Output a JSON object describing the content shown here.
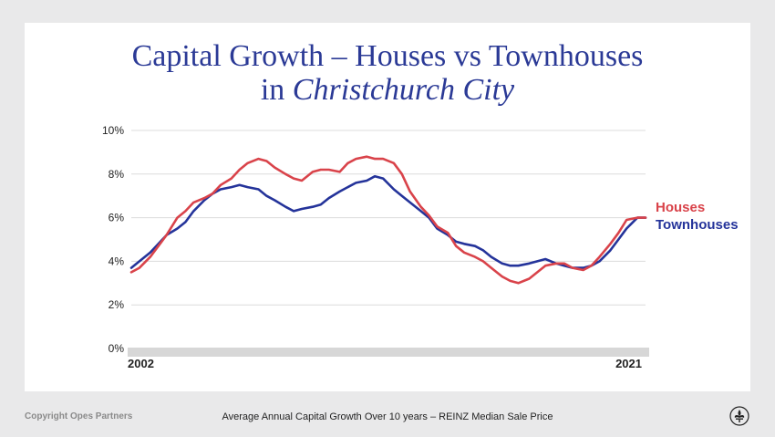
{
  "title": {
    "line1": "Capital Growth – Houses vs Townhouses",
    "line2_prefix": "in ",
    "line2_italic": "Christchurch City"
  },
  "footer": {
    "copyright": "Copyright Opes Partners",
    "caption": "Average Annual Capital Growth Over 10 years – REINZ Median Sale Price",
    "logo_icon": "fleur-de-lis-icon"
  },
  "colors": {
    "houses": "#d9434a",
    "townhouses": "#24339a",
    "title": "#2b3a96",
    "grid": "#dcdcdc",
    "axis_band": "#d7d7d7"
  },
  "chart_data": {
    "type": "line",
    "title": "Capital Growth – Houses vs Townhouses in Christchurch City",
    "xlabel": "",
    "ylabel": "",
    "xlim": [
      2002,
      2021
    ],
    "ylim": [
      0,
      10
    ],
    "y_ticks": [
      "0%",
      "2%",
      "4%",
      "6%",
      "8%",
      "10%"
    ],
    "x_tick_labels": [
      {
        "x": 2002,
        "label": "2002"
      },
      {
        "x": 2021,
        "label": "2021"
      }
    ],
    "grid": true,
    "legend": "right",
    "series": [
      {
        "name": "Houses",
        "x": [
          2002.0,
          2002.3,
          2002.7,
          2003.0,
          2003.3,
          2003.7,
          2004.0,
          2004.3,
          2004.7,
          2005.0,
          2005.3,
          2005.7,
          2006.0,
          2006.3,
          2006.7,
          2007.0,
          2007.3,
          2007.7,
          2008.0,
          2008.3,
          2008.7,
          2009.0,
          2009.3,
          2009.7,
          2010.0,
          2010.3,
          2010.7,
          2011.0,
          2011.3,
          2011.7,
          2012.0,
          2012.3,
          2012.7,
          2013.0,
          2013.3,
          2013.7,
          2014.0,
          2014.3,
          2014.7,
          2015.0,
          2015.3,
          2015.7,
          2016.0,
          2016.3,
          2016.7,
          2017.0,
          2017.3,
          2017.7,
          2018.0,
          2018.3,
          2018.7,
          2019.0,
          2019.3,
          2019.7,
          2020.0,
          2020.3,
          2020.7,
          2021.0
        ],
        "values": [
          3.5,
          3.7,
          4.2,
          4.7,
          5.2,
          6.0,
          6.3,
          6.7,
          6.9,
          7.1,
          7.5,
          7.8,
          8.2,
          8.5,
          8.7,
          8.6,
          8.3,
          8.0,
          7.8,
          7.7,
          8.1,
          8.2,
          8.2,
          8.1,
          8.5,
          8.7,
          8.8,
          8.7,
          8.7,
          8.5,
          8.0,
          7.2,
          6.5,
          6.1,
          5.6,
          5.3,
          4.7,
          4.4,
          4.2,
          4.0,
          3.7,
          3.3,
          3.1,
          3.0,
          3.2,
          3.5,
          3.8,
          3.9,
          3.9,
          3.7,
          3.6,
          3.8,
          4.2,
          4.8,
          5.3,
          5.9,
          6.0,
          6.0
        ]
      },
      {
        "name": "Townhouses",
        "x": [
          2002.0,
          2002.3,
          2002.7,
          2003.0,
          2003.3,
          2003.7,
          2004.0,
          2004.3,
          2004.7,
          2005.0,
          2005.3,
          2005.7,
          2006.0,
          2006.3,
          2006.7,
          2007.0,
          2007.3,
          2007.7,
          2008.0,
          2008.3,
          2008.7,
          2009.0,
          2009.3,
          2009.7,
          2010.0,
          2010.3,
          2010.7,
          2011.0,
          2011.3,
          2011.7,
          2012.0,
          2012.3,
          2012.7,
          2013.0,
          2013.3,
          2013.7,
          2014.0,
          2014.3,
          2014.7,
          2015.0,
          2015.3,
          2015.7,
          2016.0,
          2016.3,
          2016.7,
          2017.0,
          2017.3,
          2017.7,
          2018.0,
          2018.3,
          2018.7,
          2019.0,
          2019.3,
          2019.7,
          2020.0,
          2020.3,
          2020.7,
          2021.0
        ],
        "values": [
          3.7,
          4.0,
          4.4,
          4.8,
          5.2,
          5.5,
          5.8,
          6.3,
          6.8,
          7.1,
          7.3,
          7.4,
          7.5,
          7.4,
          7.3,
          7.0,
          6.8,
          6.5,
          6.3,
          6.4,
          6.5,
          6.6,
          6.9,
          7.2,
          7.4,
          7.6,
          7.7,
          7.9,
          7.8,
          7.3,
          7.0,
          6.7,
          6.3,
          6.0,
          5.5,
          5.2,
          4.9,
          4.8,
          4.7,
          4.5,
          4.2,
          3.9,
          3.8,
          3.8,
          3.9,
          4.0,
          4.1,
          3.9,
          3.8,
          3.7,
          3.7,
          3.8,
          4.0,
          4.5,
          5.0,
          5.5,
          6.0,
          6.0
        ]
      }
    ]
  }
}
